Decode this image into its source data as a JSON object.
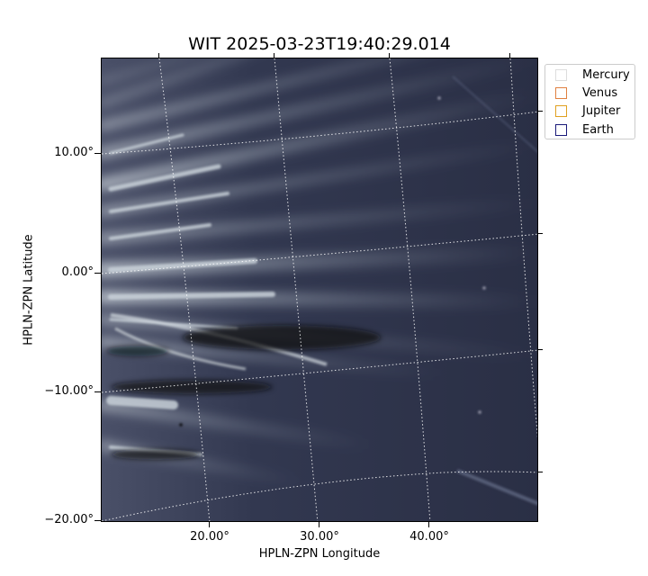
{
  "title": "WIT 2025-03-23T19:40:29.014",
  "xlabel": "HPLN-ZPN Longitude",
  "ylabel": "HPLN-ZPN Latitude",
  "x_ticks": [
    "20.00°",
    "30.00°",
    "40.00°"
  ],
  "y_ticks": [
    "10.00°",
    "0.00°",
    "−10.00°",
    "−20.00°"
  ],
  "legend": [
    {
      "label": "Mercury",
      "color": "#dddddd"
    },
    {
      "label": "Venus",
      "color": "#e08040"
    },
    {
      "label": "Jupiter",
      "color": "#e0a020"
    },
    {
      "label": "Earth",
      "color": "#1a1a7a"
    }
  ],
  "colors": {
    "background": "#2a2f45",
    "streamer": "#c8d0d8",
    "grid": "#ffffff"
  }
}
